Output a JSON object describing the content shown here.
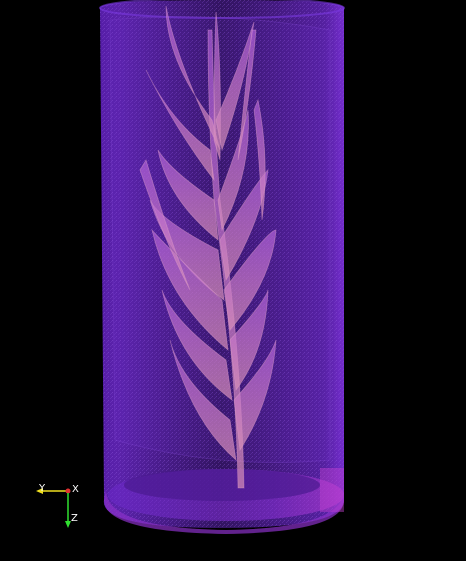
{
  "viewer": {
    "background_color": "#000000",
    "cylinder_color": "#7a2fe0",
    "cylinder_edge_color": "#5a1fb0",
    "base_ring_color": "#b03ad0",
    "plant_color": "#c070d8",
    "plant_highlight_color": "#e0a0b8"
  },
  "orientation_axes": {
    "x": {
      "label": "X",
      "color": "#e03030",
      "direction": "out-of-screen"
    },
    "y": {
      "label": "Y",
      "color": "#f0e020",
      "direction": "left"
    },
    "z": {
      "label": "Z",
      "color": "#30e030",
      "direction": "down"
    }
  }
}
